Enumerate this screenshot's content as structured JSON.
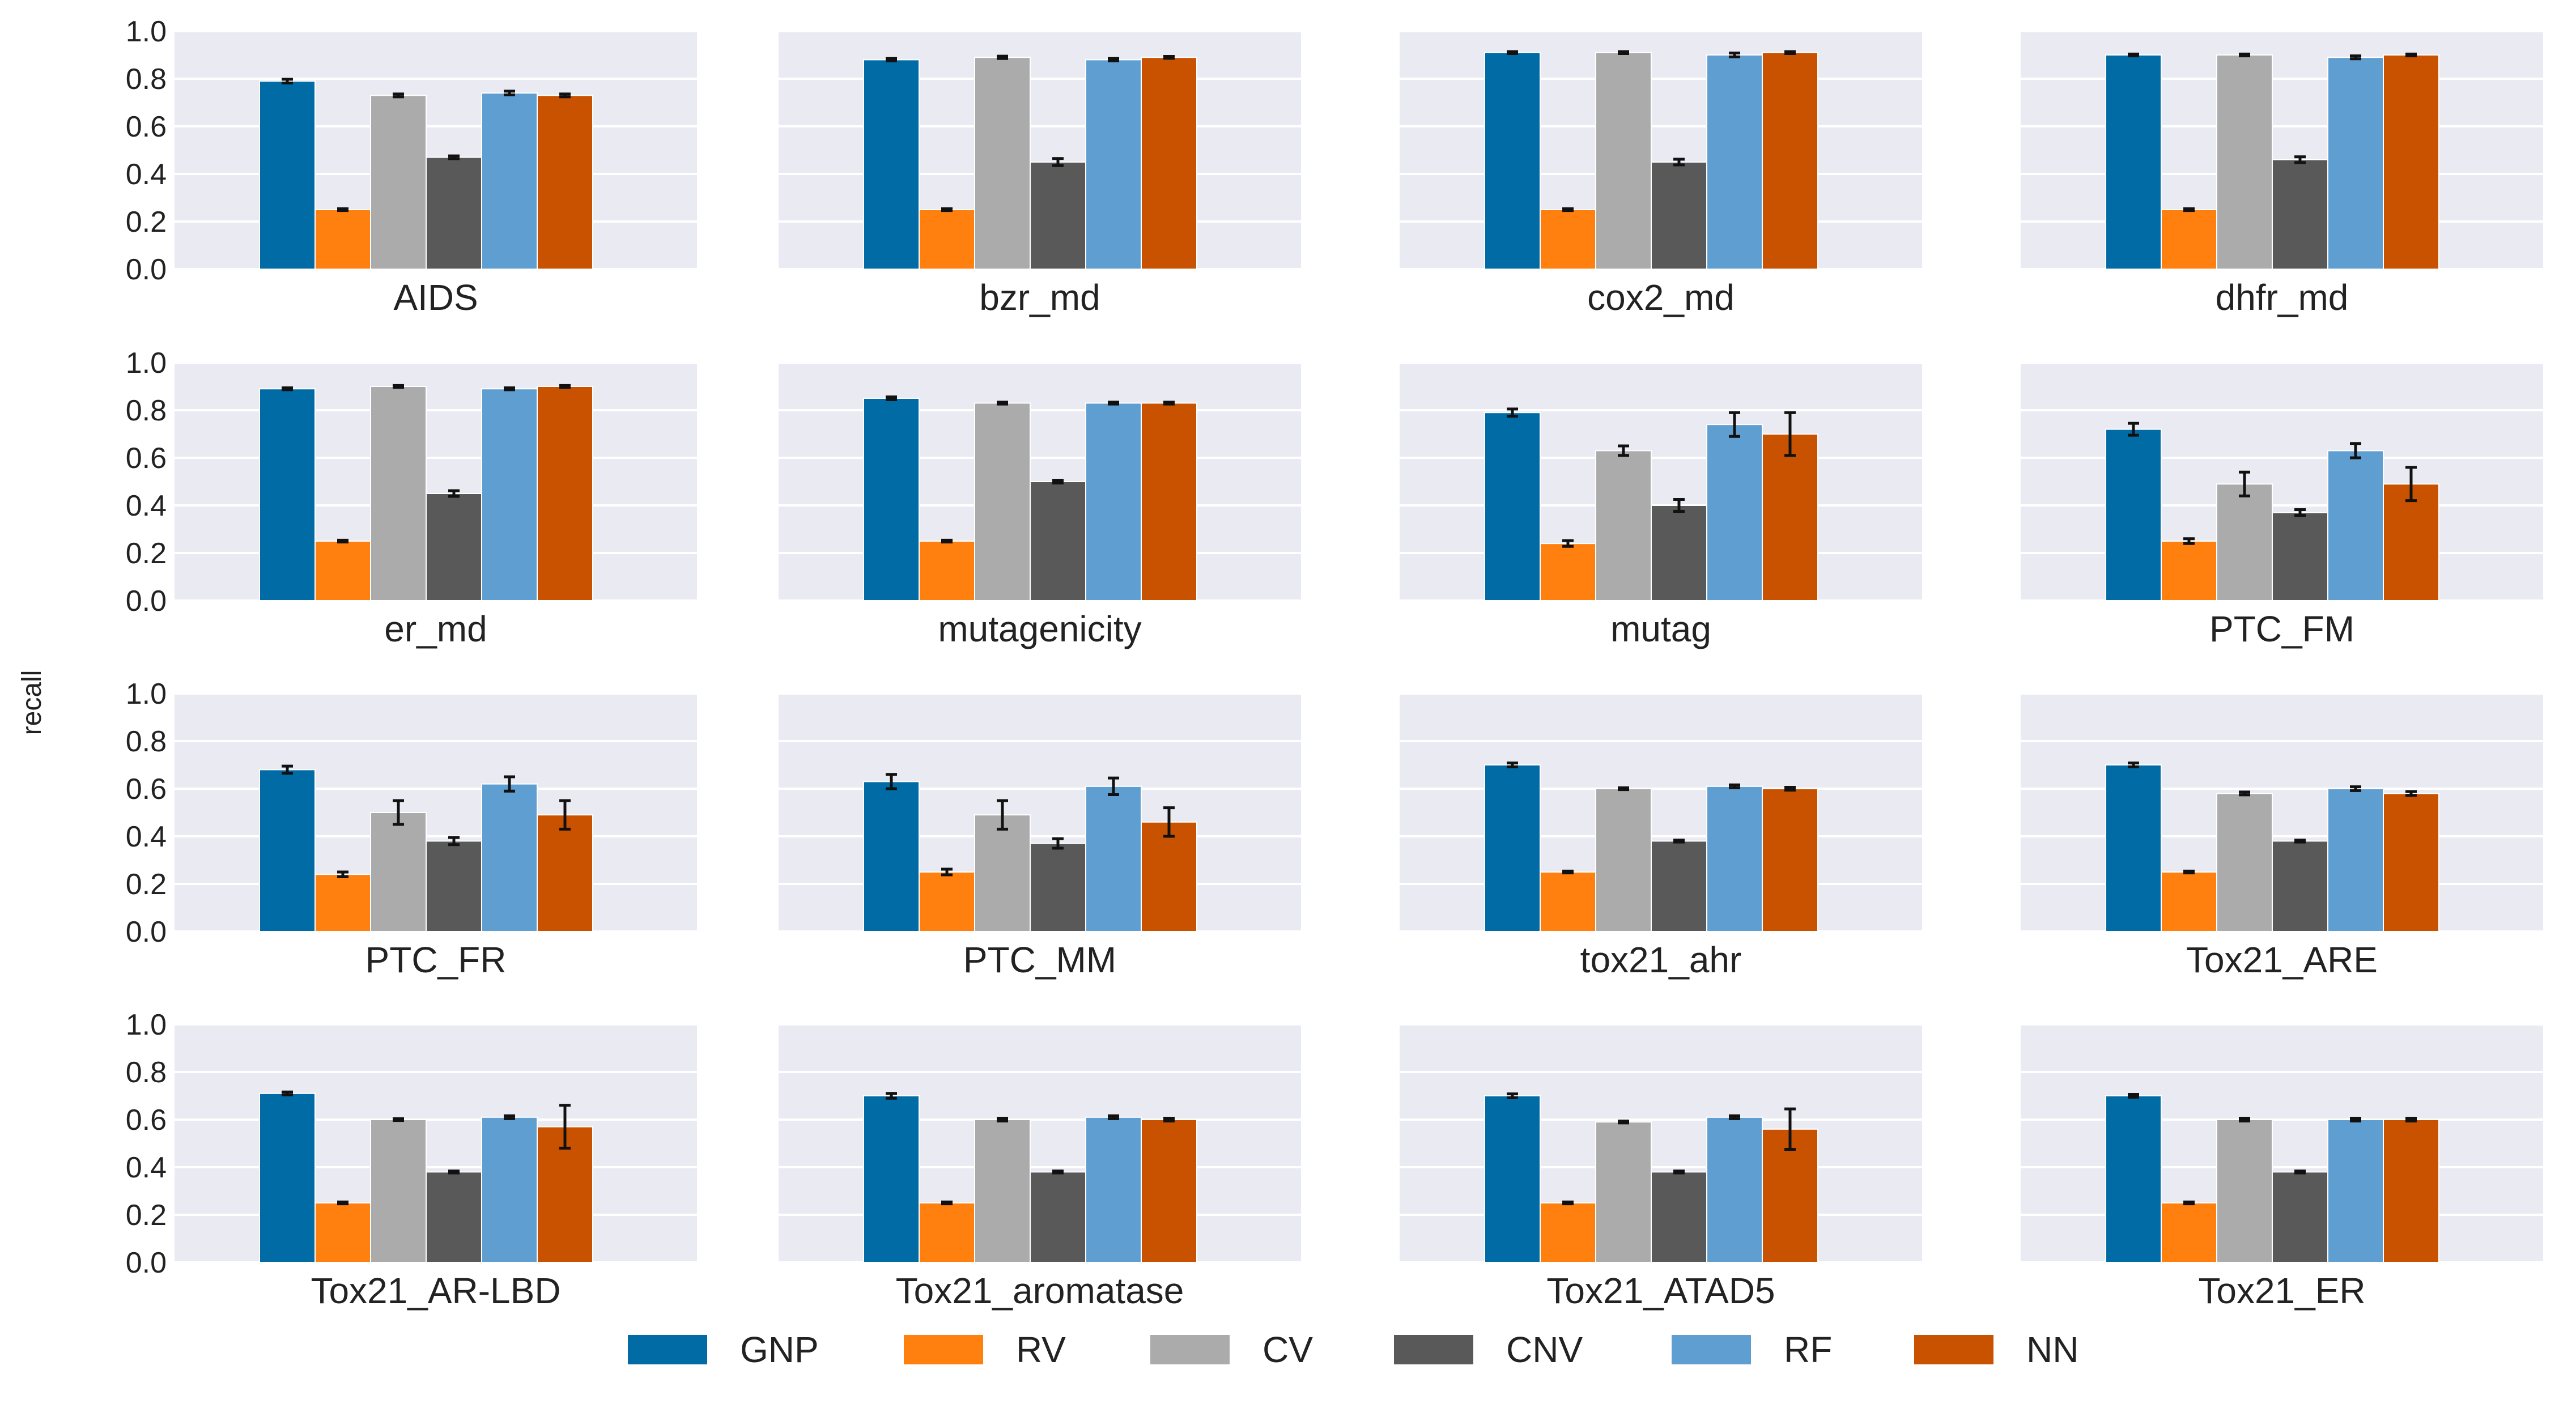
{
  "chart_data": {
    "type": "bar",
    "ylabel": "recall",
    "ylim": [
      0,
      1.0
    ],
    "yticks": [
      "0.0",
      "0.2",
      "0.4",
      "0.6",
      "0.8",
      "1.0"
    ],
    "grid": true,
    "legend_position": "bottom-center",
    "series": [
      {
        "name": "GNP",
        "color": "#006BA4"
      },
      {
        "name": "RV",
        "color": "#FF800E"
      },
      {
        "name": "CV",
        "color": "#ABABAB"
      },
      {
        "name": "CNV",
        "color": "#595959"
      },
      {
        "name": "RF",
        "color": "#5F9ED1"
      },
      {
        "name": "NN",
        "color": "#C85200"
      }
    ],
    "panels": [
      {
        "title": "AIDS",
        "values": [
          0.79,
          0.25,
          0.73,
          0.47,
          0.74,
          0.73
        ],
        "errors": [
          0.008,
          0.004,
          0.006,
          0.006,
          0.008,
          0.006
        ]
      },
      {
        "title": "bzr_md",
        "values": [
          0.88,
          0.25,
          0.89,
          0.45,
          0.88,
          0.89
        ],
        "errors": [
          0.005,
          0.004,
          0.005,
          0.015,
          0.005,
          0.004
        ]
      },
      {
        "title": "cox2_md",
        "values": [
          0.91,
          0.25,
          0.91,
          0.45,
          0.9,
          0.91
        ],
        "errors": [
          0.004,
          0.004,
          0.004,
          0.012,
          0.008,
          0.004
        ]
      },
      {
        "title": "dhfr_md",
        "values": [
          0.9,
          0.25,
          0.9,
          0.46,
          0.89,
          0.9
        ],
        "errors": [
          0.004,
          0.004,
          0.004,
          0.012,
          0.006,
          0.004
        ]
      },
      {
        "title": "er_md",
        "values": [
          0.89,
          0.25,
          0.9,
          0.45,
          0.89,
          0.9
        ],
        "errors": [
          0.004,
          0.004,
          0.004,
          0.012,
          0.004,
          0.004
        ]
      },
      {
        "title": "mutagenicity",
        "values": [
          0.85,
          0.25,
          0.83,
          0.5,
          0.83,
          0.83
        ],
        "errors": [
          0.006,
          0.004,
          0.004,
          0.006,
          0.004,
          0.004
        ]
      },
      {
        "title": "mutag",
        "values": [
          0.79,
          0.24,
          0.63,
          0.4,
          0.74,
          0.7
        ],
        "errors": [
          0.015,
          0.012,
          0.02,
          0.025,
          0.05,
          0.09
        ]
      },
      {
        "title": "PTC_FM",
        "values": [
          0.72,
          0.25,
          0.49,
          0.37,
          0.63,
          0.49
        ],
        "errors": [
          0.025,
          0.01,
          0.05,
          0.012,
          0.03,
          0.07
        ]
      },
      {
        "title": "PTC_FR",
        "values": [
          0.68,
          0.24,
          0.5,
          0.38,
          0.62,
          0.49
        ],
        "errors": [
          0.015,
          0.01,
          0.05,
          0.015,
          0.03,
          0.06
        ]
      },
      {
        "title": "PTC_MM",
        "values": [
          0.63,
          0.25,
          0.49,
          0.37,
          0.61,
          0.46
        ],
        "errors": [
          0.03,
          0.012,
          0.06,
          0.02,
          0.035,
          0.06
        ]
      },
      {
        "title": "tox21_ahr",
        "values": [
          0.7,
          0.25,
          0.6,
          0.38,
          0.61,
          0.6
        ],
        "errors": [
          0.008,
          0.004,
          0.004,
          0.004,
          0.006,
          0.006
        ]
      },
      {
        "title": "Tox21_ARE",
        "values": [
          0.7,
          0.25,
          0.58,
          0.38,
          0.6,
          0.58
        ],
        "errors": [
          0.008,
          0.004,
          0.006,
          0.004,
          0.008,
          0.008
        ]
      },
      {
        "title": "Tox21_AR-LBD",
        "values": [
          0.71,
          0.25,
          0.6,
          0.38,
          0.61,
          0.57
        ],
        "errors": [
          0.006,
          0.004,
          0.004,
          0.004,
          0.006,
          0.09
        ]
      },
      {
        "title": "Tox21_aromatase",
        "values": [
          0.7,
          0.25,
          0.6,
          0.38,
          0.61,
          0.6
        ],
        "errors": [
          0.01,
          0.004,
          0.006,
          0.004,
          0.006,
          0.006
        ]
      },
      {
        "title": "Tox21_ATAD5",
        "values": [
          0.7,
          0.25,
          0.59,
          0.38,
          0.61,
          0.56
        ],
        "errors": [
          0.008,
          0.004,
          0.004,
          0.004,
          0.006,
          0.085
        ]
      },
      {
        "title": "Tox21_ER",
        "values": [
          0.7,
          0.25,
          0.6,
          0.38,
          0.6,
          0.6
        ],
        "errors": [
          0.006,
          0.004,
          0.006,
          0.004,
          0.006,
          0.006
        ]
      }
    ]
  }
}
